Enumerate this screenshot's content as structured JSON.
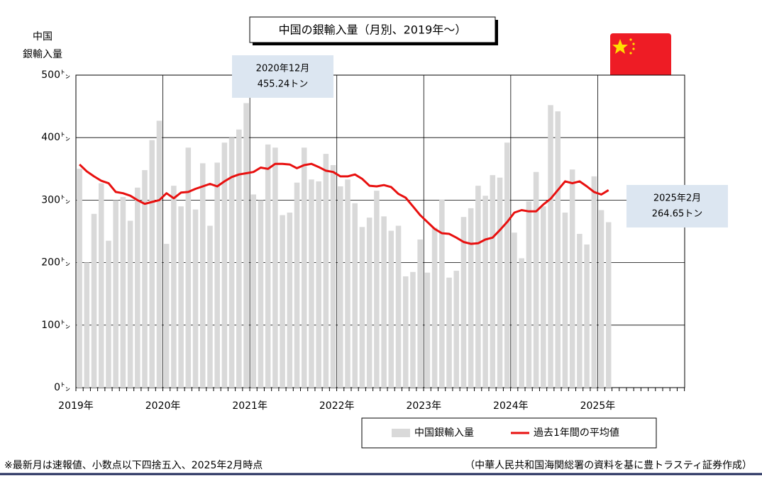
{
  "chart_data": {
    "type": "bar",
    "title": "中国の銀輸入量（月別、2019年～）",
    "ylabel": [
      "中国",
      "銀輸入量"
    ],
    "x": [
      2019,
      2019.0833,
      2019.1667,
      2019.25,
      2019.3333,
      2019.4167,
      2019.5,
      2019.5833,
      2019.6667,
      2019.75,
      2019.8333,
      2019.9167,
      2020,
      2020.0833,
      2020.1667,
      2020.25,
      2020.3333,
      2020.4167,
      2020.5,
      2020.5833,
      2020.6667,
      2020.75,
      2020.8333,
      2020.9167,
      2021,
      2021.0833,
      2021.1667,
      2021.25,
      2021.3333,
      2021.4167,
      2021.5,
      2021.5833,
      2021.6667,
      2021.75,
      2021.8333,
      2021.9167,
      2022,
      2022.0833,
      2022.1667,
      2022.25,
      2022.3333,
      2022.4167,
      2022.5,
      2022.5833,
      2022.6667,
      2022.75,
      2022.8333,
      2022.9167,
      2023,
      2023.0833,
      2023.1667,
      2023.25,
      2023.3333,
      2023.4167,
      2023.5,
      2023.5833,
      2023.6667,
      2023.75,
      2023.8333,
      2023.9167,
      2024,
      2024.0833,
      2024.1667,
      2024.25,
      2024.3333,
      2024.4167,
      2024.5,
      2024.5833,
      2024.6667,
      2024.75,
      2024.8333,
      2024.9167,
      2025,
      2025.0833
    ],
    "series": [
      {
        "name": "中国銀輸入量",
        "type": "bar",
        "color": "#d9d9d9",
        "values": [
          350,
          200,
          278,
          327,
          235,
          300,
          305,
          267,
          320,
          348,
          396,
          427,
          230,
          323,
          290,
          384,
          285,
          359,
          259,
          360,
          392,
          400,
          413,
          455.24,
          309,
          300,
          389,
          384,
          276,
          280,
          328,
          384,
          333,
          330,
          374,
          356,
          322,
          333,
          295,
          257,
          272,
          315,
          274,
          251,
          259,
          178,
          185,
          237,
          184,
          256,
          301,
          176,
          187,
          273,
          287,
          323,
          307,
          340,
          336,
          392,
          248,
          207,
          298,
          345,
          290,
          452,
          442,
          280,
          349,
          246,
          229,
          338,
          284,
          264.65
        ]
      },
      {
        "name": "過去1年間の平均値",
        "type": "line",
        "color": "#e8100f",
        "values": [
          357,
          346,
          338,
          331,
          327,
          313,
          311,
          307,
          300,
          294,
          297,
          300,
          311,
          303,
          312,
          313,
          318,
          322,
          326,
          322,
          330,
          337,
          341,
          343,
          345,
          352,
          350,
          358,
          358,
          357,
          351,
          356,
          358,
          353,
          347,
          345,
          338,
          338,
          341,
          334,
          323,
          322,
          324,
          321,
          310,
          304,
          290,
          276,
          265,
          254,
          247,
          246,
          240,
          233,
          230,
          231,
          237,
          240,
          252,
          265,
          280,
          284,
          282,
          282,
          293,
          302,
          316,
          330,
          327,
          330,
          322,
          313,
          309,
          316
        ]
      }
    ],
    "xlim": [
      2019,
      2026
    ],
    "xticks": [
      {
        "value": 2019,
        "label": "2019年"
      },
      {
        "value": 2020,
        "label": "2020年"
      },
      {
        "value": 2021,
        "label": "2021年"
      },
      {
        "value": 2022,
        "label": "2022年"
      },
      {
        "value": 2023,
        "label": "2023年"
      },
      {
        "value": 2024,
        "label": "2024年"
      },
      {
        "value": 2025,
        "label": "2025年"
      }
    ],
    "ylim": [
      0,
      500
    ],
    "yticks": [
      {
        "value": 0,
        "label": "0㌧"
      },
      {
        "value": 100,
        "label": "100㌧"
      },
      {
        "value": 200,
        "label": "200㌧"
      },
      {
        "value": 300,
        "label": "300㌧"
      },
      {
        "value": 400,
        "label": "400㌧"
      },
      {
        "value": 500,
        "label": "500㌧"
      }
    ],
    "grid": true,
    "annotations": [
      {
        "text": [
          "2020年12月",
          "455.24トン"
        ]
      },
      {
        "text": [
          "2025年2月",
          "264.65トン"
        ]
      }
    ],
    "footnote": "※最新月は速報値、小数点以下四捨五入、2025年2月時点",
    "source": "（中華人民共和国海関総署の資料を基に豊トラスティ証券作成）"
  }
}
